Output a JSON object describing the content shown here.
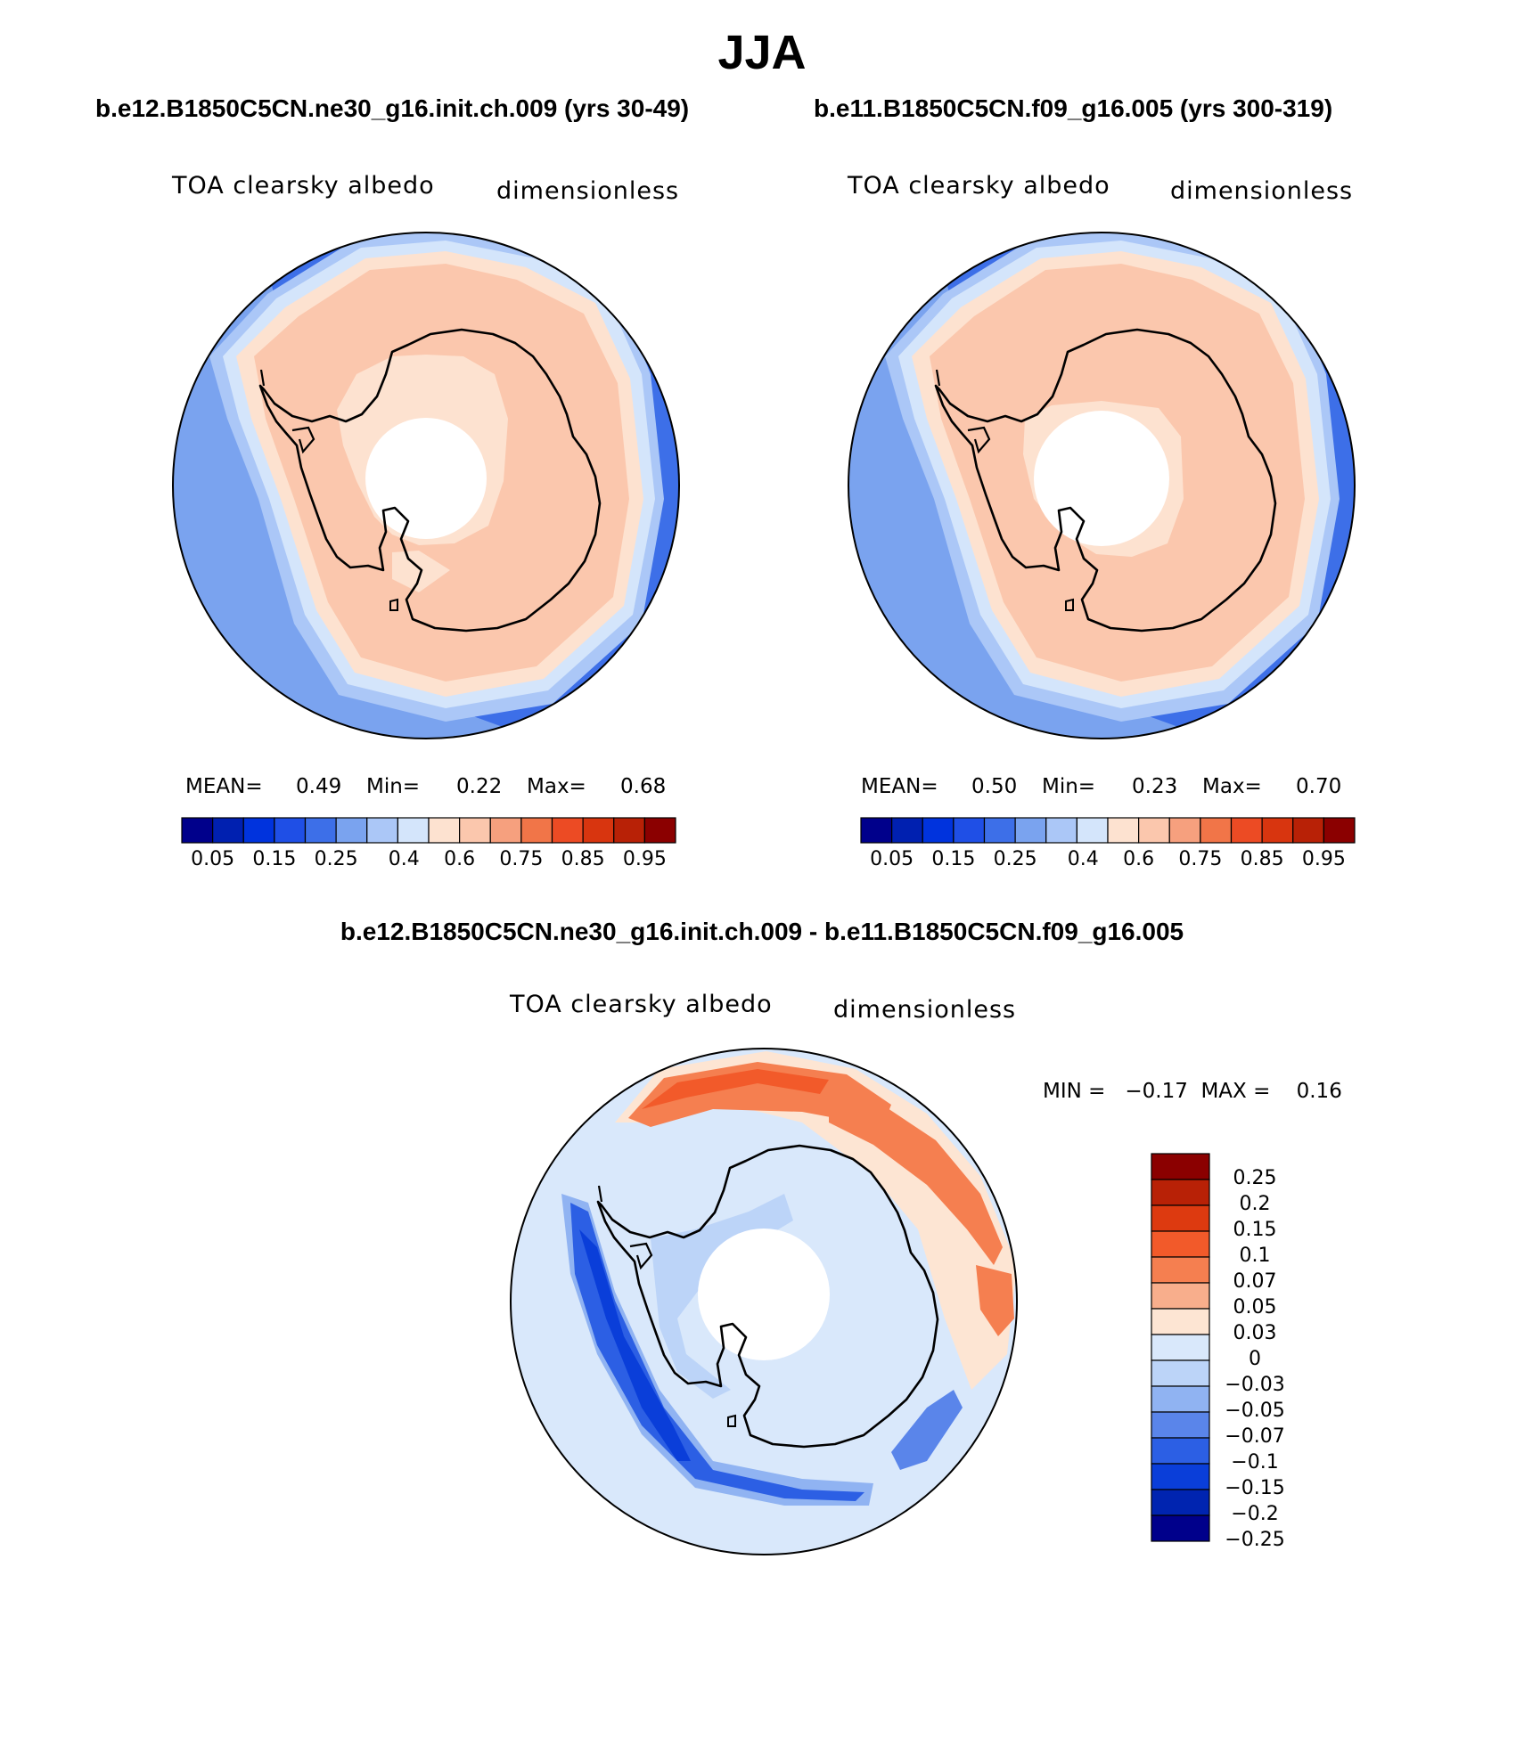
{
  "season": "JJA",
  "color_scale": {
    "colors": [
      "#00008b",
      "#0020b0",
      "#0033dd",
      "#1f4fe6",
      "#3d6fe8",
      "#7aa3ef",
      "#abc7f7",
      "#d4e5fb",
      "#fde2d0",
      "#fbc7ad",
      "#f6a07e",
      "#f17548",
      "#ec4b24",
      "#d8350f",
      "#b82106",
      "#8b0000"
    ],
    "ticks": [
      "0.05",
      "0.15",
      "0.25",
      "0.4",
      "0.6",
      "0.75",
      "0.85",
      "0.95"
    ]
  },
  "panels": [
    {
      "case": "b.e12.B1850C5CN.ne30_g16.init.ch.009 (yrs 30-49)",
      "variable": "TOA clearsky albedo",
      "units": "dimensionless",
      "mean_label": "MEAN=",
      "mean": "0.49",
      "min_label": "Min=",
      "min": "0.22",
      "max_label": "Max=",
      "max": "0.68"
    },
    {
      "case": "b.e11.B1850C5CN.f09_g16.005 (yrs 300-319)",
      "variable": "TOA clearsky albedo",
      "units": "dimensionless",
      "mean_label": "MEAN=",
      "mean": "0.50",
      "min_label": "Min=",
      "min": "0.23",
      "max_label": "Max=",
      "max": "0.70"
    }
  ],
  "difference": {
    "title": "b.e12.B1850C5CN.ne30_g16.init.ch.009 - b.e11.B1850C5CN.f09_g16.005",
    "variable": "TOA clearsky albedo",
    "units": "dimensionless",
    "minmax_text": "MIN =   −0.17  MAX =    0.16",
    "colors": [
      "#8b0000",
      "#b82106",
      "#dd3a10",
      "#f25a2a",
      "#f57f50",
      "#f8ae8c",
      "#fde5d3",
      "#d9e8fb",
      "#bcd4f8",
      "#90b3f2",
      "#5a85ea",
      "#2c5fe4",
      "#0a3ed9",
      "#0024b0",
      "#00008b"
    ],
    "labels": [
      "0.25",
      "0.2",
      "0.15",
      "0.1",
      "0.07",
      "0.05",
      "0.03",
      "0",
      "−0.03",
      "−0.05",
      "−0.07",
      "−0.1",
      "−0.15",
      "−0.2",
      "−0.25"
    ]
  }
}
